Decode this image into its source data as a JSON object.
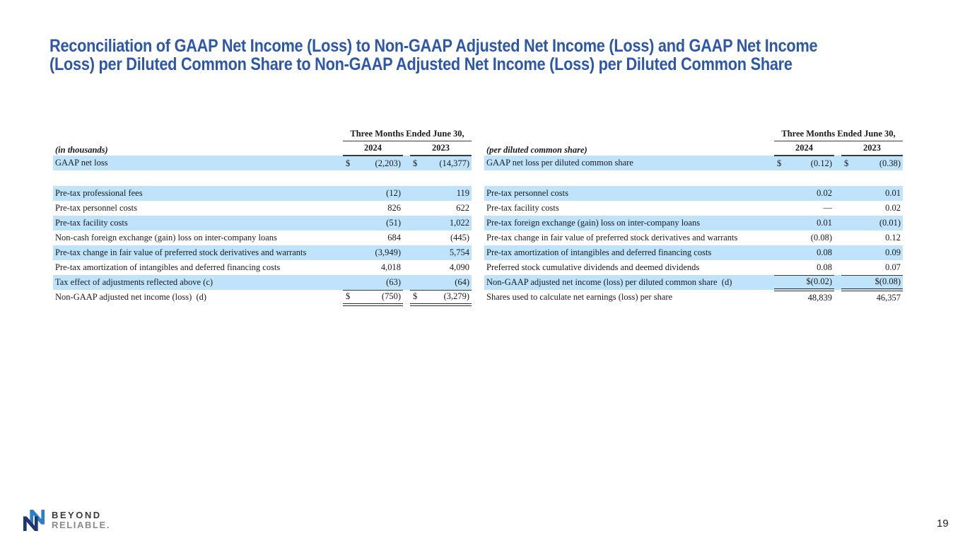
{
  "title": {
    "line1": "Reconciliation of GAAP Net Income (Loss) to Non-GAAP Adjusted Net Income (Loss) and GAAP Net Income",
    "line2": "(Loss) per Diluted Common Share to Non-GAAP Adjusted Net Income (Loss) per Diluted Common Share"
  },
  "colors": {
    "accent_blue": "#2D57A8",
    "row_highlight": "#BFE3FA",
    "logo_dark": "#21356F",
    "logo_light": "#2B7FC6"
  },
  "tables": [
    {
      "unit_label": "(in thousands)",
      "period_header": "Three Months Ended June 30,",
      "years": [
        "2024",
        "2023"
      ],
      "rows": [
        {
          "label": "GAAP net loss",
          "d1": "$",
          "v1": "(2,203)",
          "d2": "$",
          "v2": "(14,377)",
          "highlight": true
        },
        {
          "blank": true
        },
        {
          "label": "Pre-tax professional fees",
          "v1": "(12)",
          "v2": "119",
          "highlight": true
        },
        {
          "label": "Pre-tax personnel costs",
          "v1": "826",
          "v2": "622"
        },
        {
          "label": "Pre-tax facility costs",
          "v1": "(51)",
          "v2": "1,022",
          "highlight": true
        },
        {
          "label": "Non-cash foreign exchange (gain) loss on inter-company loans",
          "v1": "684",
          "v2": "(445)"
        },
        {
          "label": "Pre-tax change in fair value of preferred stock derivatives and warrants",
          "v1": "(3,949)",
          "v2": "5,754",
          "highlight": true
        },
        {
          "label": "Pre-tax amortization of intangibles and deferred financing costs",
          "v1": "4,018",
          "v2": "4,090"
        },
        {
          "label": "Tax effect of adjustments reflected above (c)",
          "v1": "(63)",
          "v2": "(64)",
          "highlight": true,
          "underline_bottom": true
        },
        {
          "label": "Non-GAAP adjusted net income (loss)  (d)",
          "d1": "$",
          "v1": "(750)",
          "d2": "$",
          "v2": "(3,279)",
          "double_bottom": true
        }
      ]
    },
    {
      "unit_label": "(per diluted common share)",
      "period_header": "Three Months Ended June 30,",
      "years": [
        "2024",
        "2023"
      ],
      "rows": [
        {
          "label": "GAAP net loss per diluted common share",
          "d1": "$",
          "v1": "(0.12)",
          "d2": "$",
          "v2": "(0.38)",
          "highlight": true
        },
        {
          "blank": true
        },
        {
          "label": "Pre-tax personnel costs",
          "v1": "0.02",
          "v2": "0.01",
          "highlight": true
        },
        {
          "label": "Pre-tax facility costs",
          "v1": "—",
          "v2": "0.02"
        },
        {
          "label": "Pre-tax foreign exchange (gain) loss on inter-company loans",
          "v1": "0.01",
          "v2": "(0.01)",
          "highlight": true
        },
        {
          "label": "Pre-tax change in fair value of preferred stock derivatives and warrants",
          "v1": "(0.08)",
          "v2": "0.12"
        },
        {
          "label": "Pre-tax amortization of intangibles and deferred financing costs",
          "v1": "0.08",
          "v2": "0.09",
          "highlight": true
        },
        {
          "label": "Preferred stock cumulative dividends and deemed dividends",
          "v1": "0.08",
          "v2": "0.07",
          "underline_bottom": true
        },
        {
          "label": "Non-GAAP adjusted net income (loss) per diluted common share  (d)",
          "v1": "$(0.02)",
          "v2": "$(0.08)",
          "highlight": true,
          "double_bottom": true
        },
        {
          "label": "Shares used to calculate net earnings (loss) per share",
          "v1": "48,839",
          "v2": "46,357"
        }
      ]
    }
  ],
  "footer": {
    "brand_top": "BEYOND",
    "brand_bottom": "RELIABLE.",
    "page_number": "19"
  }
}
